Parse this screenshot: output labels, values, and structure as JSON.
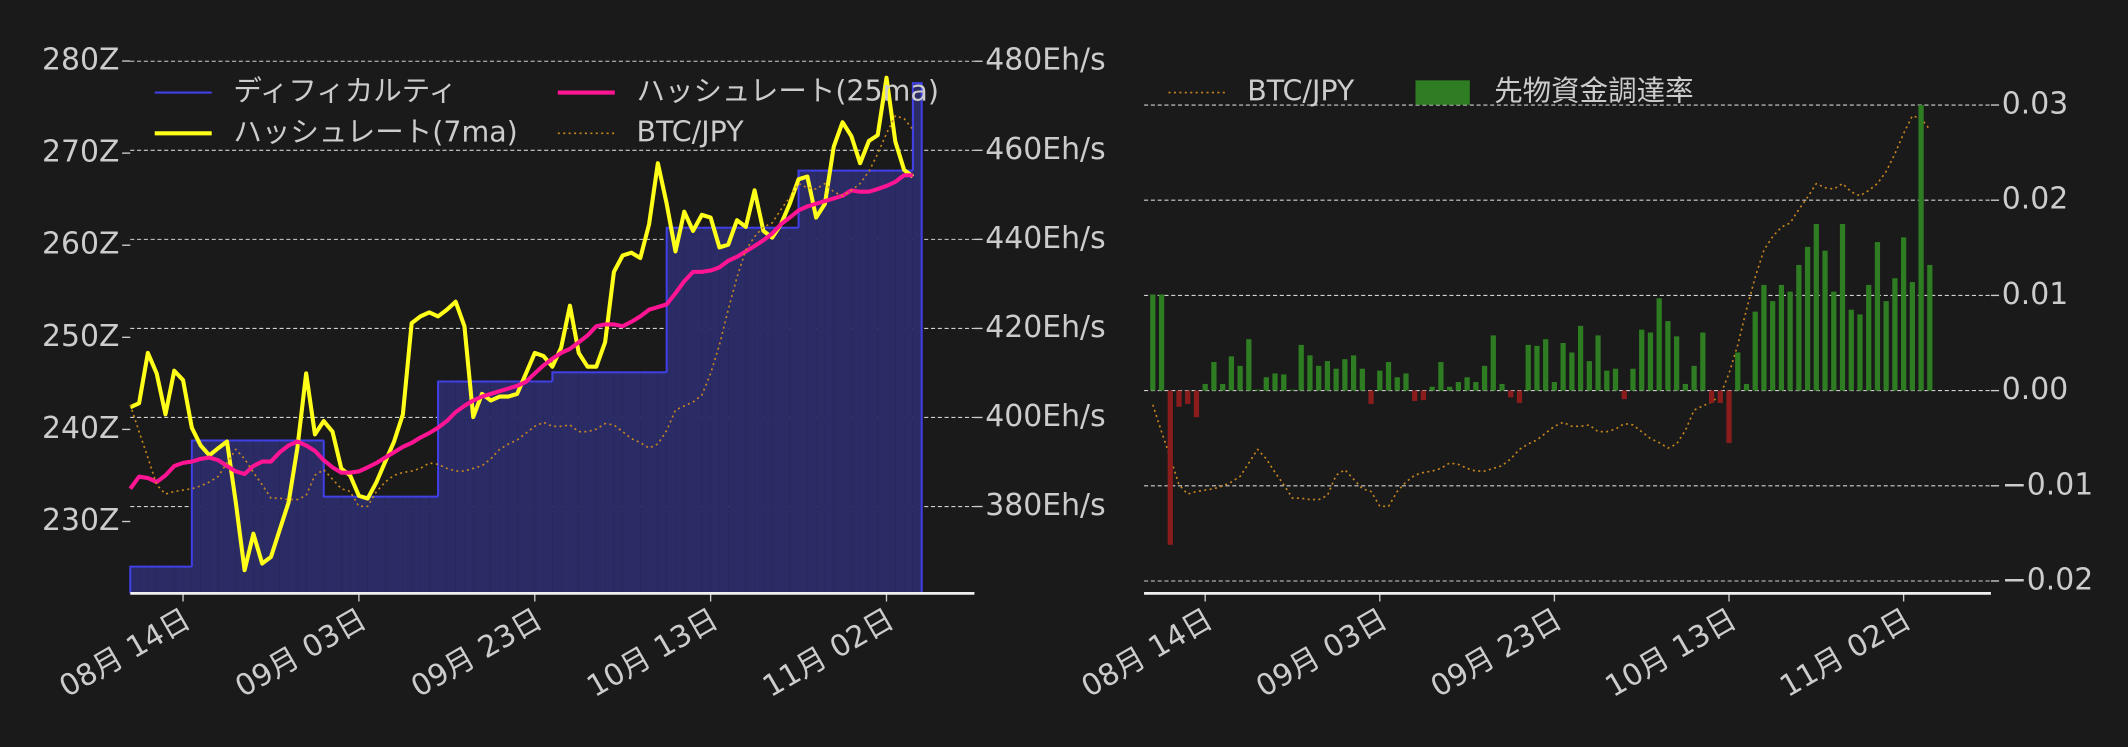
{
  "chart_data": [
    {
      "type": "line",
      "x": [
        "08-08",
        "08-09",
        "08-10",
        "08-11",
        "08-12",
        "08-13",
        "08-14",
        "08-15",
        "08-16",
        "08-17",
        "08-18",
        "08-19",
        "08-20",
        "08-21",
        "08-22",
        "08-23",
        "08-24",
        "08-25",
        "08-26",
        "08-27",
        "08-28",
        "08-29",
        "08-30",
        "08-31",
        "09-01",
        "09-02",
        "09-03",
        "09-04",
        "09-05",
        "09-06",
        "09-07",
        "09-08",
        "09-09",
        "09-10",
        "09-11",
        "09-12",
        "09-13",
        "09-14",
        "09-15",
        "09-16",
        "09-17",
        "09-18",
        "09-19",
        "09-20",
        "09-21",
        "09-22",
        "09-23",
        "09-24",
        "09-25",
        "09-26",
        "09-27",
        "09-28",
        "09-29",
        "09-30",
        "10-01",
        "10-02",
        "10-03",
        "10-04",
        "10-05",
        "10-06",
        "10-07",
        "10-08",
        "10-09",
        "10-10",
        "10-11",
        "10-12",
        "10-13",
        "10-14",
        "10-15",
        "10-16",
        "10-17",
        "10-18",
        "10-19",
        "10-20",
        "10-21",
        "10-22",
        "10-23",
        "10-24",
        "10-25",
        "10-26",
        "10-27",
        "10-28",
        "10-29",
        "10-30",
        "10-31",
        "11-01",
        "11-02",
        "11-03",
        "11-04",
        "11-05"
      ],
      "xlim": [
        "08-08",
        "11-12"
      ],
      "xticks": [
        {
          "value": "08-14",
          "label": "08月 14日"
        },
        {
          "value": "09-03",
          "label": "09月 03日"
        },
        {
          "value": "09-23",
          "label": "09月 23日"
        },
        {
          "value": "10-13",
          "label": "10月 13日"
        },
        {
          "value": "11-02",
          "label": "11月 02日"
        }
      ],
      "ylim": [
        222.2,
        280.7
      ],
      "yticks": [
        {
          "value": 230,
          "label": "230Z"
        },
        {
          "value": 240,
          "label": "240Z"
        },
        {
          "value": 250,
          "label": "250Z"
        },
        {
          "value": 260,
          "label": "260Z"
        },
        {
          "value": 270,
          "label": "270Z"
        },
        {
          "value": 280,
          "label": "280Z"
        }
      ],
      "y2lim": [
        360.5,
        481.5
      ],
      "y2ticks": [
        {
          "value": 380,
          "label": "380Eh/s"
        },
        {
          "value": 400,
          "label": "400Eh/s"
        },
        {
          "value": 420,
          "label": "420Eh/s"
        },
        {
          "value": 440,
          "label": "440Eh/s"
        },
        {
          "value": 460,
          "label": "460Eh/s"
        },
        {
          "value": 480,
          "label": "480Eh/s"
        }
      ],
      "y3lim": [
        7380000,
        11690000
      ],
      "grid": "y2",
      "legend": "upper left",
      "legend_columns": 2,
      "series": [
        {
          "name": "ディフィカルティ",
          "color": "#4040e6",
          "fill": "#2b2b66",
          "style": "step-area",
          "axis": "y",
          "values": [
            225.1,
            225.1,
            225.1,
            225.1,
            225.1,
            225.1,
            225.1,
            238.8,
            238.8,
            238.8,
            238.8,
            238.8,
            238.8,
            238.8,
            238.8,
            238.8,
            238.8,
            238.8,
            238.8,
            238.8,
            238.8,
            238.8,
            232.7,
            232.7,
            232.7,
            232.7,
            232.7,
            232.7,
            232.7,
            232.7,
            232.7,
            232.7,
            232.7,
            232.7,
            232.7,
            245.2,
            245.2,
            245.2,
            245.2,
            245.2,
            245.2,
            245.2,
            245.2,
            245.2,
            245.2,
            245.2,
            245.2,
            245.2,
            246.2,
            246.2,
            246.2,
            246.2,
            246.2,
            246.2,
            246.2,
            246.2,
            246.2,
            246.2,
            246.2,
            246.2,
            246.2,
            261.9,
            261.9,
            261.9,
            261.9,
            261.9,
            261.9,
            261.9,
            261.9,
            261.9,
            261.9,
            261.9,
            261.9,
            261.9,
            261.9,
            261.9,
            268.1,
            268.1,
            268.1,
            268.1,
            268.1,
            268.1,
            268.1,
            268.1,
            268.1,
            268.1,
            268.1,
            268.1,
            268.1,
            277.6
          ]
        },
        {
          "name": "ハッシュレート(7ma)",
          "color": "#ffff1a",
          "style": "line",
          "axis": "y2",
          "values": [
            402.3,
            403.2,
            414.5,
            409.9,
            400.7,
            410.5,
            408.4,
            397.7,
            393.7,
            391.5,
            393.1,
            394.6,
            380.9,
            365.7,
            373.9,
            367.2,
            368.7,
            374.8,
            380.9,
            393.1,
            409.9,
            396.2,
            399.2,
            396.8,
            388.5,
            387.0,
            382.4,
            381.8,
            385.5,
            390.1,
            394.6,
            400.7,
            421.2,
            422.7,
            423.6,
            422.7,
            424.2,
            426.0,
            420.5,
            400.1,
            405.3,
            403.8,
            404.7,
            404.7,
            405.3,
            409.9,
            414.5,
            413.8,
            411.4,
            415.7,
            425.1,
            414.5,
            411.4,
            411.4,
            416.9,
            432.7,
            436.4,
            437.0,
            435.8,
            443.4,
            457.1,
            448.0,
            437.3,
            446.2,
            441.9,
            445.5,
            444.9,
            438.2,
            438.8,
            444.3,
            442.8,
            451.0,
            441.9,
            440.4,
            443.4,
            448.0,
            453.5,
            454.1,
            444.9,
            448.0,
            460.8,
            466.3,
            463.2,
            457.1,
            462.1,
            463.4,
            476.3,
            462.0,
            455.6,
            454.1
          ]
        },
        {
          "name": "ハッシュレート(25ma)",
          "color": "#ff1493",
          "style": "line",
          "axis": "y2",
          "values": [
            384.0,
            386.7,
            386.4,
            385.5,
            387.0,
            389.1,
            389.8,
            390.1,
            390.7,
            391.0,
            390.4,
            389.1,
            387.9,
            387.3,
            389.1,
            390.1,
            390.1,
            392.2,
            393.7,
            394.6,
            393.7,
            392.5,
            390.4,
            388.8,
            387.6,
            387.6,
            387.9,
            388.8,
            389.8,
            391.0,
            392.2,
            393.4,
            394.3,
            395.5,
            396.5,
            397.7,
            399.2,
            401.2,
            402.6,
            403.8,
            404.7,
            405.3,
            405.9,
            406.5,
            407.1,
            408.0,
            409.9,
            411.7,
            413.2,
            414.5,
            415.4,
            416.9,
            418.4,
            420.5,
            420.9,
            420.9,
            420.5,
            421.5,
            422.7,
            424.2,
            424.8,
            425.4,
            427.9,
            430.6,
            432.7,
            432.7,
            433.0,
            433.7,
            435.2,
            436.1,
            437.3,
            438.5,
            439.8,
            441.3,
            443.4,
            444.9,
            446.5,
            447.4,
            448.0,
            448.6,
            449.2,
            449.8,
            451.0,
            450.7,
            450.7,
            451.3,
            452.0,
            452.9,
            454.4,
            454.4
          ]
        },
        {
          "name": "BTC/JPY",
          "color": "#c8861e",
          "style": "dotted",
          "axis": "y3",
          "values": [
            8889000,
            8673000,
            8466000,
            8249000,
            8174000,
            8195000,
            8206000,
            8217000,
            8239000,
            8271000,
            8315000,
            8423000,
            8532000,
            8456000,
            8347000,
            8249000,
            8141000,
            8141000,
            8130000,
            8130000,
            8163000,
            8325000,
            8369000,
            8293000,
            8217000,
            8195000,
            8076000,
            8076000,
            8195000,
            8271000,
            8325000,
            8347000,
            8358000,
            8380000,
            8423000,
            8412000,
            8380000,
            8358000,
            8358000,
            8380000,
            8401000,
            8456000,
            8532000,
            8575000,
            8607000,
            8662000,
            8716000,
            8748000,
            8716000,
            8716000,
            8727000,
            8673000,
            8673000,
            8694000,
            8738000,
            8727000,
            8673000,
            8618000,
            8586000,
            8542000,
            8575000,
            8683000,
            8846000,
            8879000,
            8911000,
            8965000,
            9139000,
            9367000,
            9649000,
            9909000,
            10126000,
            10234000,
            10310000,
            10343000,
            10451000,
            10549000,
            10658000,
            10625000,
            10614000,
            10658000,
            10592000,
            10560000,
            10603000,
            10658000,
            10755000,
            10896000,
            11059000,
            11200000,
            11178000,
            11091000
          ]
        }
      ]
    },
    {
      "type": "bar",
      "x": [
        "08-08",
        "08-09",
        "08-10",
        "08-11",
        "08-12",
        "08-13",
        "08-14",
        "08-15",
        "08-16",
        "08-17",
        "08-18",
        "08-19",
        "08-20",
        "08-21",
        "08-22",
        "08-23",
        "08-24",
        "08-25",
        "08-26",
        "08-27",
        "08-28",
        "08-29",
        "08-30",
        "08-31",
        "09-01",
        "09-02",
        "09-03",
        "09-04",
        "09-05",
        "09-06",
        "09-07",
        "09-08",
        "09-09",
        "09-10",
        "09-11",
        "09-12",
        "09-13",
        "09-14",
        "09-15",
        "09-16",
        "09-17",
        "09-18",
        "09-19",
        "09-20",
        "09-21",
        "09-22",
        "09-23",
        "09-24",
        "09-25",
        "09-26",
        "09-27",
        "09-28",
        "09-29",
        "09-30",
        "10-01",
        "10-02",
        "10-03",
        "10-04",
        "10-05",
        "10-06",
        "10-07",
        "10-08",
        "10-09",
        "10-10",
        "10-11",
        "10-12",
        "10-13",
        "10-14",
        "10-15",
        "10-16",
        "10-17",
        "10-18",
        "10-19",
        "10-20",
        "10-21",
        "10-22",
        "10-23",
        "10-24",
        "10-25",
        "10-26",
        "10-27",
        "10-28",
        "10-29",
        "10-30",
        "10-31",
        "11-01",
        "11-02",
        "11-03",
        "11-04",
        "11-05"
      ],
      "xlim": [
        "08-07",
        "11-12"
      ],
      "xticks": [
        {
          "value": "08-14",
          "label": "08月 14日"
        },
        {
          "value": "09-03",
          "label": "09月 03日"
        },
        {
          "value": "09-23",
          "label": "09月 23日"
        },
        {
          "value": "10-13",
          "label": "10月 13日"
        },
        {
          "value": "11-02",
          "label": "11月 02日"
        }
      ],
      "ylim": [
        -0.0213,
        0.0353
      ],
      "yticks": [
        {
          "value": -0.02,
          "label": "−0.02"
        },
        {
          "value": -0.01,
          "label": "−0.01"
        },
        {
          "value": 0,
          "label": "0.00"
        },
        0.01,
        0.02,
        0.03
      ],
      "y_axis_side": "right",
      "y3lim": [
        7380000,
        11690000
      ],
      "grid": "y",
      "legend": "upper left",
      "legend_columns": 2,
      "series": [
        {
          "name": "BTC/JPY",
          "color": "#c8861e",
          "style": "dotted",
          "axis": "y3",
          "values": [
            8889000,
            8673000,
            8466000,
            8249000,
            8174000,
            8195000,
            8206000,
            8217000,
            8239000,
            8271000,
            8315000,
            8423000,
            8532000,
            8456000,
            8347000,
            8249000,
            8141000,
            8141000,
            8130000,
            8130000,
            8163000,
            8325000,
            8369000,
            8293000,
            8217000,
            8195000,
            8076000,
            8076000,
            8195000,
            8271000,
            8325000,
            8347000,
            8358000,
            8380000,
            8423000,
            8412000,
            8380000,
            8358000,
            8358000,
            8380000,
            8401000,
            8456000,
            8532000,
            8575000,
            8607000,
            8662000,
            8716000,
            8748000,
            8716000,
            8716000,
            8727000,
            8673000,
            8673000,
            8694000,
            8738000,
            8727000,
            8673000,
            8618000,
            8586000,
            8542000,
            8575000,
            8683000,
            8846000,
            8879000,
            8911000,
            8965000,
            9139000,
            9367000,
            9649000,
            9909000,
            10126000,
            10234000,
            10310000,
            10343000,
            10451000,
            10549000,
            10658000,
            10625000,
            10614000,
            10658000,
            10592000,
            10560000,
            10603000,
            10658000,
            10755000,
            10896000,
            11059000,
            11200000,
            11178000,
            11091000
          ]
        },
        {
          "name": "先物資金調達率",
          "color": "#2e7d22",
          "negative_color": "#8b1c1c",
          "style": "bar",
          "axis": "y",
          "values": [
            0.0101,
            0.0101,
            -0.0162,
            -0.0017,
            -0.0014,
            -0.0028,
            0.0007,
            0.003,
            0.0007,
            0.0036,
            0.0026,
            0.0054,
            0.0001,
            0.0014,
            0.0018,
            0.0017,
            0.0001,
            0.0048,
            0.0037,
            0.0026,
            0.0031,
            0.0023,
            0.0033,
            0.0037,
            0.0023,
            -0.0014,
            0.0021,
            0.003,
            0.0014,
            0.0018,
            -0.0011,
            -0.001,
            0.0004,
            0.003,
            0.0004,
            0.0009,
            0.0014,
            0.0009,
            0.0026,
            0.0058,
            0.0007,
            -0.0007,
            -0.0013,
            0.0048,
            0.0047,
            0.0054,
            0.0009,
            0.005,
            0.004,
            0.0068,
            0.0031,
            0.0058,
            0.0021,
            0.0023,
            -0.0009,
            0.0023,
            0.0064,
            0.0061,
            0.0097,
            0.0073,
            0.0057,
            0.0007,
            0.0026,
            0.0061,
            -0.0013,
            -0.0013,
            -0.0055,
            0.004,
            0.0007,
            0.0083,
            0.0111,
            0.0094,
            0.0111,
            0.0104,
            0.0132,
            0.0151,
            0.0175,
            0.0147,
            0.0104,
            0.0175,
            0.0085,
            0.008,
            0.0111,
            0.0156,
            0.0094,
            0.0118,
            0.0161,
            0.0114,
            0.03,
            0.0132
          ]
        }
      ]
    }
  ]
}
